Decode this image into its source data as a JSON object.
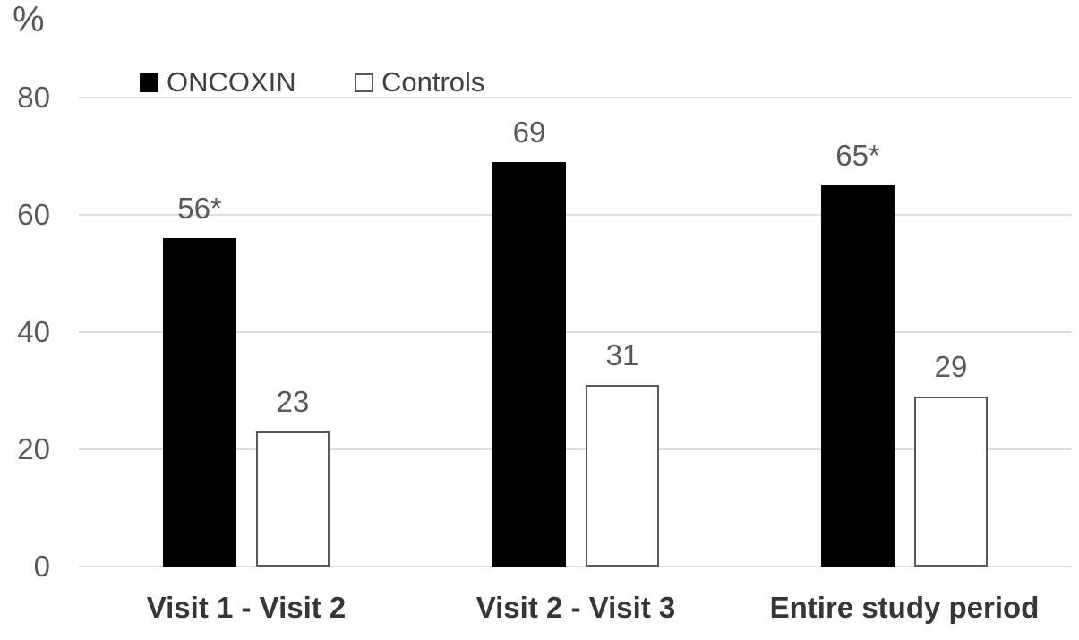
{
  "chart_data": {
    "type": "bar",
    "title": "",
    "ylabel": "%",
    "xlabel": "",
    "categories": [
      "Visit 1 - Visit 2",
      "Visit 2 - Visit 3",
      "Entire study period"
    ],
    "series": [
      {
        "name": "ONCOXIN",
        "values": [
          56,
          69,
          65
        ],
        "labels": [
          "56*",
          "69",
          "65*"
        ],
        "fill": "#000000",
        "border": "#000000"
      },
      {
        "name": "Controls",
        "values": [
          23,
          31,
          29
        ],
        "labels": [
          "23",
          "31",
          "29"
        ],
        "fill": "#ffffff",
        "border": "#595959"
      }
    ],
    "ylim": [
      0,
      80
    ],
    "yticks": [
      0,
      20,
      40,
      60,
      80
    ],
    "grid": true,
    "legend_position": "top",
    "annotation_note": "*",
    "colors": {
      "oncoxin_bar": "#000000",
      "controls_bar_fill": "#ffffff",
      "controls_bar_border": "#595959",
      "gridline": "#dedede",
      "axis_label": "#595959",
      "category_label": "#363636",
      "background": "#ffffff"
    }
  }
}
